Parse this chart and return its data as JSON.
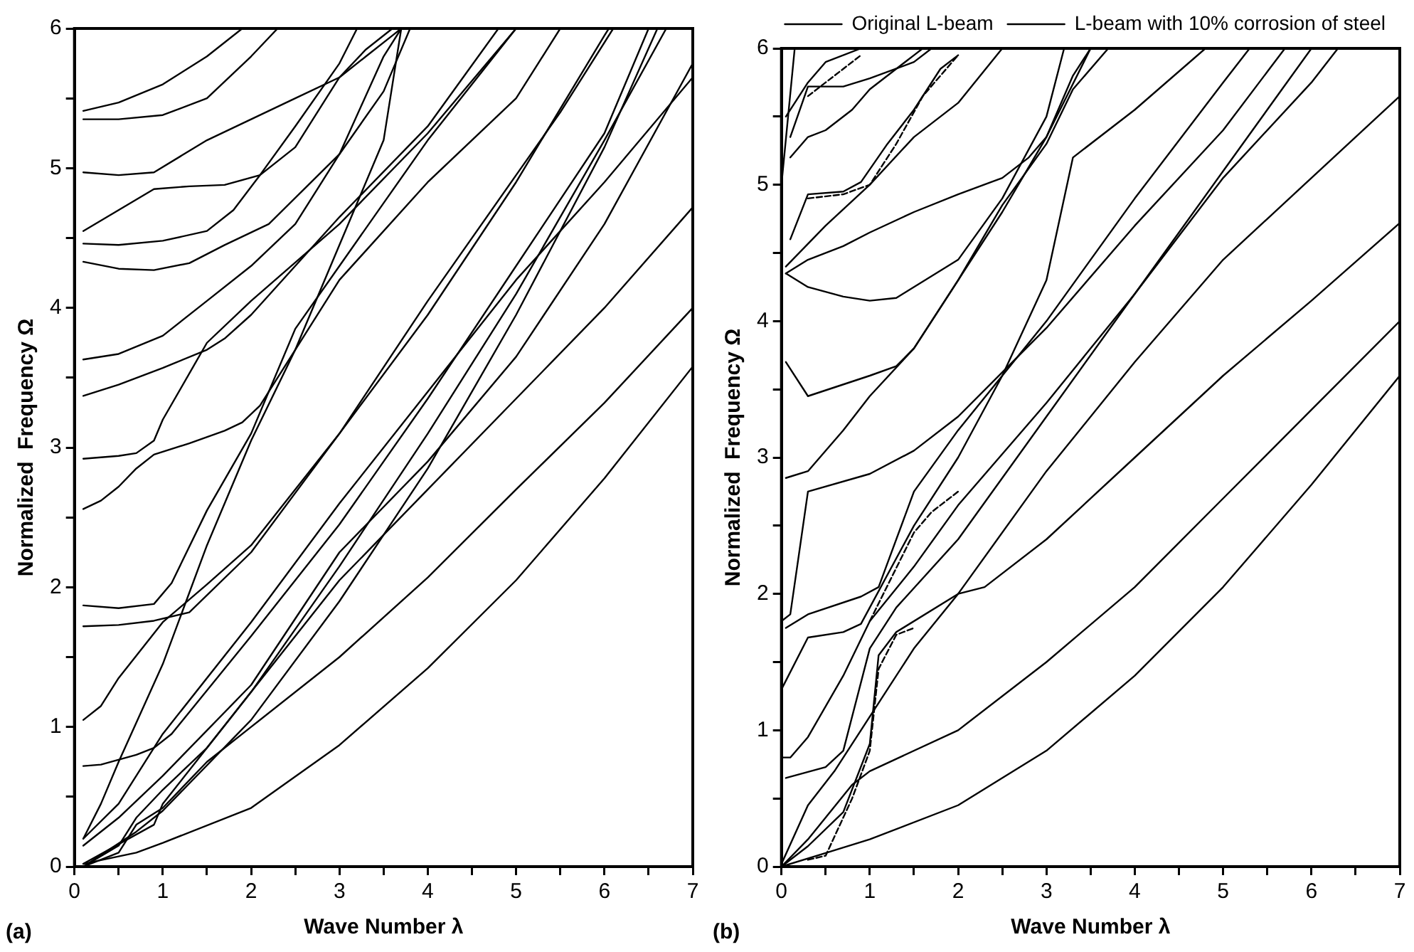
{
  "chart_data": [
    {
      "type": "line",
      "xlabel": "Wave Number λ",
      "ylabel": "Normalized  Frequency Ω",
      "annotations": [
        "(a)"
      ],
      "xlim": [
        0,
        7
      ],
      "ylim": [
        0,
        6
      ],
      "xticks": [
        0,
        {
          "value": 0.5,
          "label": null
        },
        1,
        {
          "value": 1.5,
          "label": null
        },
        2,
        {
          "value": 2.5,
          "label": null
        },
        3,
        {
          "value": 3.5,
          "label": null
        },
        4,
        {
          "value": 4.5,
          "label": null
        },
        5,
        {
          "value": 5.5,
          "label": null
        },
        6,
        {
          "value": 6.5,
          "label": null
        },
        7
      ],
      "yticks": [
        0,
        {
          "value": 0.5,
          "label": null
        },
        1,
        {
          "value": 1.5,
          "label": null
        },
        2,
        {
          "value": 2.5,
          "label": null
        },
        3,
        {
          "value": 3.5,
          "label": null
        },
        4,
        {
          "value": 4.5,
          "label": null
        },
        5,
        {
          "value": 5.5,
          "label": null
        },
        6
      ],
      "grid": false,
      "legend": false,
      "marker": "none",
      "line_style": "solid",
      "series": [
        {
          "color": "#000000",
          "x": [
            0.1,
            0.7,
            1,
            2,
            3,
            4,
            5,
            6,
            7
          ],
          "values": [
            0.02,
            0.1,
            0.17,
            0.42,
            0.87,
            1.42,
            2.05,
            2.78,
            3.58
          ]
        },
        {
          "color": "#000000",
          "x": [
            0.1,
            0.5,
            0.7,
            1,
            1.5,
            2,
            3,
            4,
            5,
            6,
            7
          ],
          "values": [
            0,
            0.1,
            0.3,
            0.42,
            0.75,
            1,
            1.5,
            2.07,
            2.7,
            3.32,
            4
          ]
        },
        {
          "color": "#000000",
          "x": [
            0.1,
            0.5,
            0.7,
            1,
            1.5,
            2,
            3,
            4,
            5,
            6,
            7
          ],
          "values": [
            0,
            0.15,
            0.35,
            0.55,
            0.85,
            1.25,
            2.05,
            2.7,
            3.35,
            4,
            4.72
          ]
        },
        {
          "color": "#000000",
          "x": [
            0.1,
            0.5,
            1,
            2,
            3,
            4,
            5,
            6,
            7
          ],
          "values": [
            0.15,
            0.35,
            0.65,
            1.3,
            2.25,
            2.9,
            3.65,
            4.6,
            5.75
          ]
        },
        {
          "color": "#000000",
          "x": [
            0.1,
            0.5,
            1,
            2,
            3,
            4,
            5,
            6,
            7
          ],
          "values": [
            0.2,
            0.45,
            0.95,
            1.75,
            2.6,
            3.4,
            4.2,
            4.9,
            5.65
          ]
        },
        {
          "color": "#000000",
          "x": [
            0.1,
            0.7,
            1,
            2,
            3,
            4,
            5,
            6,
            6.6
          ],
          "values": [
            0,
            0.25,
            0.4,
            1.05,
            1.9,
            2.85,
            3.95,
            5.15,
            6
          ]
        },
        {
          "color": "#000000",
          "x": [
            0.1,
            0.9,
            1,
            2,
            3,
            4,
            5,
            6,
            6.7
          ],
          "values": [
            0.02,
            0.3,
            0.45,
            1.25,
            2.15,
            3.1,
            4.1,
            5.2,
            6
          ]
        },
        {
          "color": "#000000",
          "x": [
            0.1,
            0.3,
            0.7,
            0.9,
            1.1,
            2,
            3,
            4,
            5,
            6,
            6.5
          ],
          "values": [
            0.72,
            0.73,
            0.8,
            0.85,
            0.95,
            1.65,
            2.45,
            3.35,
            4.3,
            5.25,
            6
          ]
        },
        {
          "color": "#000000",
          "x": [
            0.1,
            0.3,
            0.5,
            1,
            1.5,
            2,
            3,
            4,
            5,
            6,
            6.05
          ],
          "values": [
            1.05,
            1.15,
            1.35,
            1.75,
            2.02,
            2.3,
            3.1,
            3.95,
            4.9,
            5.95,
            6
          ]
        },
        {
          "color": "#000000",
          "x": [
            0.1,
            0.5,
            0.9,
            1.3,
            2,
            3,
            4,
            5,
            5.5,
            6.1
          ],
          "values": [
            1.72,
            1.73,
            1.76,
            1.82,
            2.25,
            3.1,
            4.05,
            4.95,
            5.4,
            6
          ]
        },
        {
          "color": "#000000",
          "x": [
            0.1,
            0.5,
            0.9,
            1.1,
            1.5,
            2,
            2.5,
            3,
            3.5,
            4,
            5
          ],
          "values": [
            1.87,
            1.85,
            1.88,
            2.03,
            2.55,
            3.1,
            3.85,
            4.3,
            4.75,
            5.2,
            6
          ]
        },
        {
          "color": "#000000",
          "x": [
            0.1,
            0.3,
            0.5,
            1,
            1.5,
            2,
            2.5,
            3,
            3.5,
            3.7
          ],
          "values": [
            0.2,
            0.45,
            0.75,
            1.45,
            2.3,
            3.05,
            3.7,
            4.45,
            5.2,
            6
          ]
        },
        {
          "color": "#000000",
          "x": [
            0.1,
            0.3,
            0.5,
            0.7,
            0.9,
            1.3,
            1.7,
            1.9,
            2.1,
            2.5,
            3,
            4,
            5,
            5.5
          ],
          "values": [
            2.56,
            2.62,
            2.72,
            2.85,
            2.95,
            3.03,
            3.12,
            3.18,
            3.3,
            3.7,
            4.2,
            4.9,
            5.5,
            6
          ]
        },
        {
          "color": "#000000",
          "x": [
            0.1,
            0.5,
            0.7,
            0.9,
            1,
            1.5,
            2,
            3,
            4,
            5
          ],
          "values": [
            2.92,
            2.94,
            2.96,
            3.05,
            3.2,
            3.75,
            4.05,
            4.6,
            5.25,
            6
          ]
        },
        {
          "color": "#000000",
          "x": [
            0.1,
            0.5,
            1,
            1.5,
            1.7,
            2,
            3,
            4,
            4.8
          ],
          "values": [
            3.37,
            3.45,
            3.57,
            3.7,
            3.78,
            3.95,
            4.65,
            5.3,
            6
          ]
        },
        {
          "color": "#000000",
          "x": [
            0.1,
            0.5,
            1,
            1.5,
            2,
            2.5,
            3,
            3.5,
            3.7
          ],
          "values": [
            3.63,
            3.67,
            3.8,
            4.05,
            4.3,
            4.6,
            5.1,
            5.8,
            6
          ]
        },
        {
          "color": "#000000",
          "x": [
            0.1,
            0.5,
            0.9,
            1.3,
            1.7,
            2.2,
            3,
            3.5,
            3.8
          ],
          "values": [
            4.33,
            4.28,
            4.27,
            4.32,
            4.45,
            4.6,
            5.1,
            5.55,
            6
          ]
        },
        {
          "color": "#000000",
          "x": [
            0.1,
            0.5,
            1,
            1.5,
            1.8,
            2.1,
            2.5,
            3,
            3.3,
            3.6
          ],
          "values": [
            4.46,
            4.45,
            4.48,
            4.55,
            4.7,
            4.95,
            5.15,
            5.65,
            5.85,
            6
          ]
        },
        {
          "color": "#000000",
          "x": [
            0.1,
            0.5,
            0.9,
            1.3,
            1.7,
            2.1,
            2.5,
            3,
            3.2
          ],
          "values": [
            4.55,
            4.7,
            4.85,
            4.87,
            4.88,
            4.95,
            5.3,
            5.75,
            6
          ]
        },
        {
          "color": "#000000",
          "x": [
            0.1,
            0.5,
            0.9,
            1.5,
            2,
            2.5,
            3,
            3.3,
            3.6,
            3.7
          ],
          "values": [
            4.97,
            4.95,
            4.97,
            5.2,
            5.35,
            5.5,
            5.65,
            5.8,
            5.95,
            6
          ]
        },
        {
          "color": "#000000",
          "x": [
            0.1,
            0.5,
            1,
            1.5,
            2,
            2.3
          ],
          "values": [
            5.35,
            5.35,
            5.38,
            5.5,
            5.8,
            6
          ]
        },
        {
          "color": "#000000",
          "x": [
            0.1,
            0.5,
            1,
            1.5,
            1.9
          ],
          "values": [
            5.41,
            5.47,
            5.6,
            5.8,
            6
          ]
        }
      ]
    },
    {
      "type": "line",
      "xlabel": "Wave Number λ",
      "ylabel": "Normalized  Frequency Ω",
      "annotations": [
        "(b)"
      ],
      "xlim": [
        0,
        7
      ],
      "ylim": [
        0,
        6
      ],
      "xticks": [
        0,
        {
          "value": 0.5,
          "label": null
        },
        1,
        {
          "value": 1.5,
          "label": null
        },
        2,
        {
          "value": 2.5,
          "label": null
        },
        3,
        {
          "value": 3.5,
          "label": null
        },
        4,
        {
          "value": 4.5,
          "label": null
        },
        5,
        {
          "value": 5.5,
          "label": null
        },
        6,
        {
          "value": 6.5,
          "label": null
        },
        7
      ],
      "yticks": [
        0,
        {
          "value": 0.5,
          "label": null
        },
        1,
        {
          "value": 1.5,
          "label": null
        },
        2,
        {
          "value": 2.5,
          "label": null
        },
        3,
        {
          "value": 3.5,
          "label": null
        },
        4,
        {
          "value": 4.5,
          "label": null
        },
        5,
        {
          "value": 5.5,
          "label": null
        },
        6
      ],
      "grid": false,
      "legend": "top right",
      "marker": "none",
      "line_style": "solid",
      "series": [
        {
          "name": "Original L-beam",
          "color": "#000000",
          "x": [
            0,
            0.5,
            1,
            2,
            3,
            4,
            5,
            6,
            7
          ],
          "values": [
            0,
            0.1,
            0.2,
            0.45,
            0.85,
            1.4,
            2.05,
            2.8,
            3.6
          ]
        },
        {
          "name": "L-beam with 10% corrosion of steel",
          "color": "#000000",
          "line_style": "dashed",
          "x": [
            0.3,
            0.5,
            0.8,
            1,
            1.1,
            1.3,
            1.5
          ],
          "values": [
            0.05,
            0.08,
            0.5,
            0.85,
            1.45,
            1.7,
            1.75
          ]
        },
        {
          "color": "#000000",
          "x": [
            0,
            0.3,
            0.8,
            1,
            2,
            3,
            4,
            5,
            6,
            7
          ],
          "values": [
            0,
            0.2,
            0.6,
            0.7,
            1,
            1.5,
            2.05,
            2.7,
            3.35,
            4
          ]
        },
        {
          "color": "#000000",
          "x": [
            0,
            0.3,
            0.7,
            1,
            1.1,
            1.3,
            2,
            2.3,
            3,
            4,
            5,
            6,
            7
          ],
          "values": [
            0,
            0.15,
            0.4,
            0.9,
            1.55,
            1.72,
            2,
            2.05,
            2.4,
            3,
            3.6,
            4.15,
            4.72
          ]
        },
        {
          "color": "#000000",
          "x": [
            0,
            0.3,
            0.6,
            0.9,
            1.5,
            2,
            3,
            4,
            5,
            6,
            7
          ],
          "values": [
            0.02,
            0.45,
            0.7,
            1,
            1.6,
            2,
            2.9,
            3.7,
            4.45,
            5.05,
            5.65
          ]
        },
        {
          "color": "#000000",
          "x": [
            0.05,
            0.5,
            0.7,
            1,
            1.3,
            2,
            3,
            4,
            5,
            6,
            6.3
          ],
          "values": [
            0.65,
            0.73,
            0.85,
            1.6,
            1.9,
            2.4,
            3.3,
            4.2,
            5.05,
            5.75,
            6
          ]
        },
        {
          "color": "#000000",
          "x": [
            0,
            0.1,
            0.3,
            0.7,
            1,
            1.5,
            2,
            3,
            4,
            5,
            6
          ],
          "values": [
            0.8,
            0.8,
            0.95,
            1.4,
            1.8,
            2.2,
            2.65,
            3.4,
            4.2,
            5.1,
            6
          ]
        },
        {
          "color": "#000000",
          "x": [
            0,
            0.3,
            0.7,
            0.9,
            1.5,
            2,
            2.5,
            3,
            4,
            5,
            5.3
          ],
          "values": [
            1.3,
            1.68,
            1.72,
            1.78,
            2.5,
            3,
            3.6,
            4,
            4.9,
            5.75,
            6
          ]
        },
        {
          "color": "#000000",
          "line_style": "dashed",
          "x": [
            1,
            1.5,
            1.7,
            2
          ],
          "values": [
            1.8,
            2.45,
            2.6,
            2.75
          ]
        },
        {
          "color": "#000000",
          "x": [
            0.05,
            0.3,
            0.9,
            1.1,
            1.5,
            2,
            2.5,
            3,
            3.3,
            4,
            4.8
          ],
          "values": [
            1.75,
            1.85,
            1.98,
            2.05,
            2.75,
            3.2,
            3.6,
            4.3,
            5.2,
            5.55,
            6
          ]
        },
        {
          "color": "#000000",
          "x": [
            0.05,
            0.3,
            0.7,
            1,
            1.5,
            2,
            2.5,
            3,
            3.5
          ],
          "values": [
            2.85,
            2.9,
            3.2,
            3.45,
            3.8,
            4.3,
            4.8,
            5.35,
            6
          ]
        },
        {
          "color": "#000000",
          "x": [
            0,
            0.1,
            0.3,
            1,
            1.5,
            2,
            3,
            4,
            5,
            5.7
          ],
          "values": [
            1.8,
            1.85,
            2.75,
            2.88,
            3.05,
            3.3,
            3.95,
            4.7,
            5.4,
            6
          ]
        },
        {
          "color": "#000000",
          "x": [
            0.05,
            0.3,
            1,
            1.3,
            1.5,
            2,
            2.5,
            3,
            3.3,
            3.7
          ],
          "values": [
            3.7,
            3.45,
            3.6,
            3.67,
            3.8,
            4.3,
            4.85,
            5.3,
            5.7,
            6
          ]
        },
        {
          "color": "#000000",
          "x": [
            0.05,
            0.3,
            0.7,
            1,
            1.3,
            2,
            2.5,
            3,
            3.2
          ],
          "values": [
            4.35,
            4.25,
            4.18,
            4.15,
            4.17,
            4.45,
            4.9,
            5.5,
            6
          ]
        },
        {
          "color": "#000000",
          "x": [
            0.05,
            0.3,
            0.7,
            1,
            1.5,
            2,
            2.5,
            2.8,
            3,
            3.3,
            3.5
          ],
          "values": [
            4.35,
            4.45,
            4.55,
            4.65,
            4.8,
            4.93,
            5.05,
            5.2,
            5.35,
            5.8,
            6
          ]
        },
        {
          "color": "#000000",
          "x": [
            0.05,
            0.5,
            1,
            1.5,
            2,
            2.5
          ],
          "values": [
            4.4,
            4.7,
            5,
            5.35,
            5.6,
            6
          ]
        },
        {
          "color": "#000000",
          "x": [
            0.1,
            0.3,
            0.7,
            0.9,
            1.2,
            1.5,
            1.8,
            2
          ],
          "values": [
            4.6,
            4.93,
            4.95,
            5.02,
            5.3,
            5.55,
            5.85,
            5.95
          ]
        },
        {
          "color": "#000000",
          "line_style": "dashed",
          "x": [
            0.3,
            0.7,
            1,
            1.3,
            1.6,
            2
          ],
          "values": [
            4.9,
            4.93,
            5,
            5.3,
            5.65,
            5.95
          ]
        },
        {
          "color": "#000000",
          "x": [
            0.1,
            0.3,
            0.5,
            0.8,
            1,
            1.3,
            1.5,
            1.6
          ],
          "values": [
            5.2,
            5.35,
            5.4,
            5.55,
            5.7,
            5.85,
            5.95,
            6
          ]
        },
        {
          "color": "#000000",
          "x": [
            0.1,
            0.3,
            0.7,
            1,
            1.5,
            1.7
          ],
          "values": [
            5.35,
            5.72,
            5.72,
            5.78,
            5.9,
            6
          ]
        },
        {
          "color": "#000000",
          "line_style": "dashed",
          "x": [
            0.3,
            0.5,
            0.9
          ],
          "values": [
            5.65,
            5.75,
            5.95
          ]
        },
        {
          "color": "#000000",
          "x": [
            0.05,
            0.3,
            0.5,
            0.9
          ],
          "values": [
            5.5,
            5.75,
            5.9,
            6
          ]
        },
        {
          "color": "#000000",
          "x": [
            0,
            0.15
          ],
          "values": [
            5,
            6
          ]
        }
      ]
    }
  ]
}
